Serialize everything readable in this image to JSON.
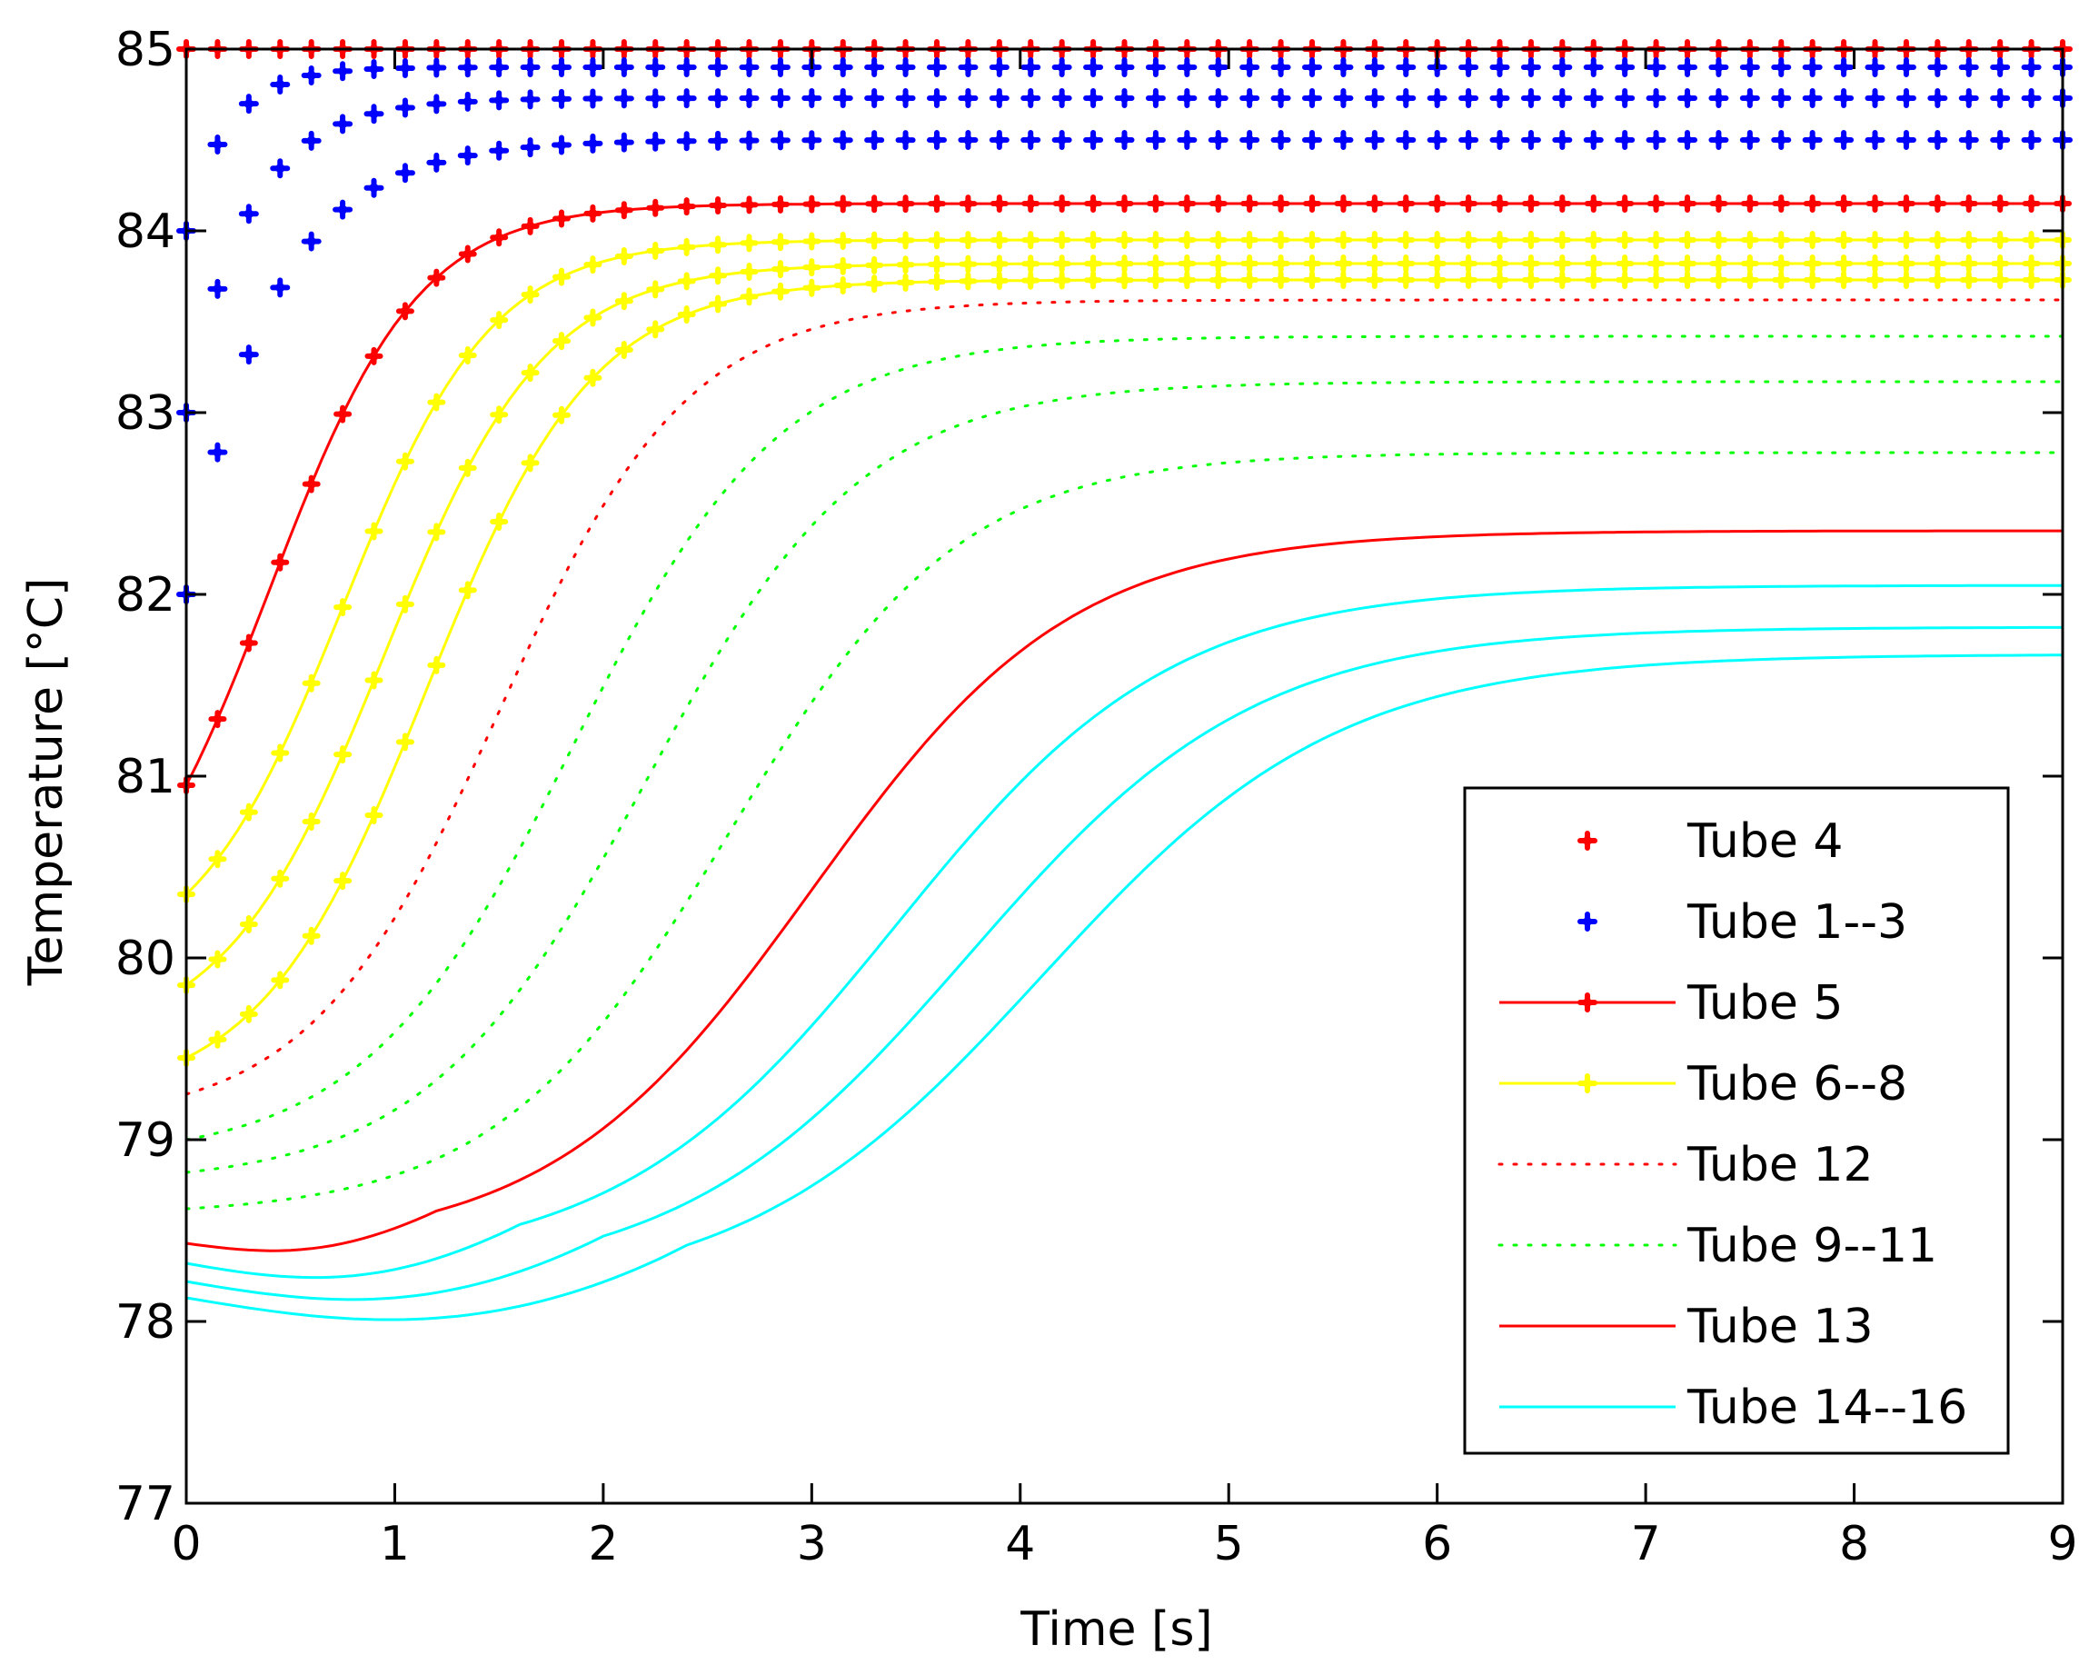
{
  "chart_data": {
    "type": "line",
    "title": "",
    "xlabel": "Time [s]",
    "ylabel": "Temperature [°C]",
    "xlim": [
      0,
      9
    ],
    "ylim": [
      77,
      85
    ],
    "xticks": [
      0,
      1,
      2,
      3,
      4,
      5,
      6,
      7,
      8,
      9
    ],
    "yticks": [
      77,
      78,
      79,
      80,
      81,
      82,
      83,
      84,
      85
    ],
    "xtick_labels": [
      "0",
      "1",
      "2",
      "3",
      "4",
      "5",
      "6",
      "7",
      "8",
      "9"
    ],
    "ytick_labels": [
      "77",
      "78",
      "79",
      "80",
      "81",
      "82",
      "83",
      "84",
      "85"
    ],
    "grid": false,
    "legend_position": "bottom-right",
    "series": [
      {
        "name": "Tube 4",
        "style": "markers",
        "color": "#ff0000",
        "curves": [
          {
            "y0": 85.0,
            "yinf": 85.0,
            "shape": "exp",
            "tau": 0.3
          }
        ]
      },
      {
        "name": "Tube 1--3",
        "style": "markers",
        "color": "#0000ff",
        "curves": [
          {
            "y0": 84.0,
            "yinf": 84.9,
            "shape": "exp",
            "tau": 0.2
          },
          {
            "y0": 83.0,
            "yinf": 84.73,
            "shape": "exp",
            "tau": 0.3
          },
          {
            "y0": 82.0,
            "yinf": 84.5,
            "shape": "exp",
            "tau": 0.4
          }
        ]
      },
      {
        "name": "Tube 5",
        "style": "line-markers",
        "color": "#ff0000",
        "curves": [
          {
            "y0": 80.95,
            "yinf": 84.15,
            "shape": "sig",
            "t0": 0.4,
            "k": 2.8
          }
        ]
      },
      {
        "name": "Tube 6--8",
        "style": "line-markers",
        "color": "#ffff00",
        "curves": [
          {
            "y0": 80.35,
            "yinf": 83.95,
            "shape": "sig",
            "t0": 0.75,
            "k": 2.8
          },
          {
            "y0": 79.85,
            "yinf": 83.82,
            "shape": "sig",
            "t0": 0.95,
            "k": 2.6
          },
          {
            "y0": 79.45,
            "yinf": 83.73,
            "shape": "sig",
            "t0": 1.15,
            "k": 2.5
          }
        ]
      },
      {
        "name": "Tube 12",
        "style": "dotted",
        "color": "#ff0000",
        "curves": [
          {
            "y0": 79.25,
            "yinf": 83.62,
            "shape": "sig",
            "t0": 1.5,
            "k": 2.2
          }
        ]
      },
      {
        "name": "Tube 9--11",
        "style": "dotted",
        "color": "#00ff00",
        "curves": [
          {
            "y0": 79.0,
            "yinf": 83.42,
            "shape": "sig",
            "t0": 1.85,
            "k": 2.0
          },
          {
            "y0": 78.82,
            "yinf": 83.17,
            "shape": "sig",
            "t0": 2.2,
            "k": 1.9
          },
          {
            "y0": 78.62,
            "yinf": 82.78,
            "shape": "sig",
            "t0": 2.6,
            "k": 1.8
          }
        ]
      },
      {
        "name": "Tube 13",
        "style": "solid",
        "color": "#ff0000",
        "curves": [
          {
            "y0": 78.43,
            "yinf": 82.35,
            "shape": "sig",
            "t0": 3.0,
            "k": 1.6,
            "dip": 0.08,
            "tdip": 0.6
          }
        ]
      },
      {
        "name": "Tube 14--16",
        "style": "solid",
        "color": "#00ffff",
        "curves": [
          {
            "y0": 78.32,
            "yinf": 82.05,
            "shape": "sig",
            "t0": 3.4,
            "k": 1.5,
            "dip": 0.12,
            "tdip": 0.8
          },
          {
            "y0": 78.22,
            "yinf": 81.82,
            "shape": "sig",
            "t0": 3.75,
            "k": 1.45,
            "dip": 0.14,
            "tdip": 1.0
          },
          {
            "y0": 78.13,
            "yinf": 81.67,
            "shape": "sig",
            "t0": 4.1,
            "k": 1.4,
            "dip": 0.16,
            "tdip": 1.2
          }
        ]
      }
    ]
  }
}
